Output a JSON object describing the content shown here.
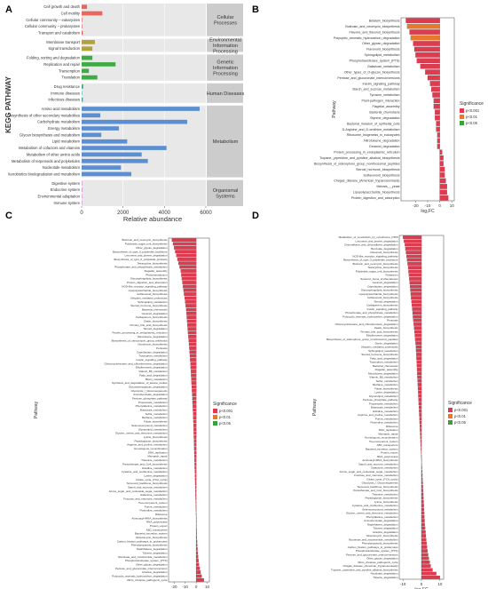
{
  "chart_data": [
    {
      "panel": "A",
      "type": "bar",
      "orientation": "horizontal",
      "xlabel": "Relative abundance",
      "ylabel": "KEGG PATHWAY",
      "xlim": [
        0,
        6000
      ],
      "xticks": [
        "0",
        "2000",
        "4000",
        "6000"
      ],
      "groups": [
        {
          "name": "Cellular Processes",
          "color": "#e9675f",
          "items": [
            {
              "label": "Cell growth and death",
              "value": 260
            },
            {
              "label": "Cell motility",
              "value": 1000
            },
            {
              "label": "Cellular community – eukaryotes",
              "value": 30
            },
            {
              "label": "Cellular community – prokaryotes",
              "value": 30
            },
            {
              "label": "Transport and catabolism",
              "value": 60
            }
          ]
        },
        {
          "name": "Environmental Information Processing",
          "color": "#b3a23a",
          "items": [
            {
              "label": "Membrane transport",
              "value": 640
            },
            {
              "label": "Signal transduction",
              "value": 520
            }
          ]
        },
        {
          "name": "Genetic Information Processing",
          "color": "#3fab45",
          "items": [
            {
              "label": "Folding, sorting and degradation",
              "value": 520
            },
            {
              "label": "Replication and repair",
              "value": 1640
            },
            {
              "label": "Transcription",
              "value": 350
            },
            {
              "label": "Translation",
              "value": 760
            }
          ]
        },
        {
          "name": "Human Diseases",
          "color": "#3fa7a7",
          "items": [
            {
              "label": "Drug resistance",
              "value": 80
            },
            {
              "label": "Immune diseases",
              "value": 20
            },
            {
              "label": "Infectious diseases",
              "value": 60
            }
          ]
        },
        {
          "name": "Metabolism",
          "color": "#5b8fd1",
          "items": [
            {
              "label": "Amino acid metabolism",
              "value": 5700
            },
            {
              "label": "Biosynthesis of other secondary metabolites",
              "value": 900
            },
            {
              "label": "Carbohydrate metabolism",
              "value": 5100
            },
            {
              "label": "Energy metabolism",
              "value": 1800
            },
            {
              "label": "Glycan biosynthesis and metabolism",
              "value": 950
            },
            {
              "label": "Lipid metabolism",
              "value": 2200
            },
            {
              "label": "Metabolism of cofactors and vitamins",
              "value": 4100
            },
            {
              "label": "Metabolism of other amino acids",
              "value": 2900
            },
            {
              "label": "Metabolism of terpenoids and polyketides",
              "value": 3200
            },
            {
              "label": "Nucleotide metabolism",
              "value": 1900
            },
            {
              "label": "Xenobiotics biodegradation and metabolism",
              "value": 2400
            }
          ]
        },
        {
          "name": "Organismal Systems",
          "color": "#d56ad0",
          "items": [
            {
              "label": "Digestive system",
              "value": 20
            },
            {
              "label": "Endocrine system",
              "value": 30
            },
            {
              "label": "Environmental adaptation",
              "value": 15
            },
            {
              "label": "Immune system",
              "value": 10
            }
          ]
        }
      ]
    },
    {
      "panel": "B",
      "type": "bar",
      "orientation": "horizontal",
      "xlabel": "log₂FC",
      "ylabel": "Pathway",
      "xlim": [
        -32,
        12
      ],
      "xticks": [
        "-20",
        "-10",
        "0",
        "10"
      ],
      "legend": {
        "title": "Significance",
        "entries": [
          "p<0.001",
          "p<0.01",
          "p<0.05"
        ],
        "colors": [
          "#e03a4f",
          "#e8792a",
          "#3aa23c"
        ],
        "placement": "right"
      },
      "categories": [
        "Betalain_biosynthesis",
        "Butirosin_and_neomycin_biosynthesis",
        "Flavone_and_flavonol_biosynthesis",
        "Polycyclic_aromatic_hydrocarbon_degradation",
        "Other_glycan_degradation",
        "Flavonoid_biosynthesis",
        "Sphingolipid_metabolism",
        "Phosphotransferase_system_(PTS)",
        "Galactose_metabolism",
        "Other_types_of_O-glycan_biosynthesis",
        "Pentose_and_glucuronate_interconversions",
        "Insulin_signaling_pathway",
        "Starch_and_sucrose_metabolism",
        "Tyrosine_metabolism",
        "Plant-pathogen_interaction",
        "Flagellar_assembly",
        "Bacterial_chemotaxis",
        "Styrene_degradation",
        "Bacterial_invasion_of_epithelial_cells",
        "D-Arginine_and_D-ornithine_metabolism",
        "Ribosome_biogenesis_in_eukaryotes",
        "Nitrotoluene_degradation",
        "Geraniol_degradation",
        "Protein_processing_in_endoplasmic_reticulum",
        "Tropane,_piperidine_and_pyridine_alkaloid_biosynthesis",
        "Biosynthesis_of_siderophore_group_nonribosomal_peptides",
        "Steroid_hormone_biosynthesis",
        "Isoflavonoid_biosynthesis",
        "Chagas_disease_(American_trypanosomiasis)",
        "Meiosis_-_yeast",
        "Lipopolysaccharide_biosynthesis",
        "Protein_digestion_and_absorption"
      ],
      "values": [
        -28,
        -27,
        -25,
        -24,
        -22,
        -21,
        -20,
        -19,
        -16,
        -12,
        -10,
        -8,
        -7,
        -6,
        -5,
        -5,
        -4,
        -4,
        -3,
        -3,
        -2,
        -2,
        -2,
        2,
        3,
        3,
        4,
        4,
        5,
        6,
        6,
        7
      ],
      "significance": [
        "p<0.001",
        "p<0.01",
        "p<0.001",
        "p<0.01",
        "p<0.001",
        "p<0.001",
        "p<0.001",
        "p<0.001",
        "p<0.001",
        "p<0.001",
        "p<0.001",
        "p<0.001",
        "p<0.001",
        "p<0.001",
        "p<0.001",
        "p<0.001",
        "p<0.001",
        "p<0.001",
        "p<0.001",
        "p<0.001",
        "p<0.001",
        "p<0.001",
        "p<0.001",
        "p<0.001",
        "p<0.001",
        "p<0.001",
        "p<0.001",
        "p<0.001",
        "p<0.001",
        "p<0.001",
        "p<0.001",
        "p<0.001"
      ]
    },
    {
      "panel": "C",
      "type": "bar",
      "orientation": "horizontal",
      "xlabel": "log₂FC",
      "ylabel": "Pathway",
      "xlim": [
        -25,
        12
      ],
      "xticks": [
        "-20",
        "-10",
        "0",
        "10"
      ],
      "legend": {
        "title": "Significance",
        "entries": [
          "p<0.001",
          "p<0.01",
          "p<0.05"
        ],
        "colors": [
          "#e03a4f",
          "#e8792a",
          "#3aa23c"
        ],
        "placement": "right"
      },
      "categories": [
        "Butirosin_and_neomycin_biosynthesis",
        "Polyketide_sugar_unit_biosynthesis",
        "Other_glycan_degradation",
        "Biosynthesis_of_type_II_polyketide_backbone",
        "Limonene_and_pinene_degradation",
        "Biosynthesis_of_type_II_polyketide_products",
        "Tetracycline_biosynthesis",
        "Phosphonate_and_phosphinate_metabolism",
        "Flagellar_assembly",
        "Phototransduction",
        "Glycosphingolipid_biosynthesis",
        "Protein_digestion_and_absorption",
        "NOD-like_receptor_signaling_pathway",
        "Lipopolysaccharide_biosynthesis",
        "Isoflavonoid_biosynthesis",
        "Ubiquitin_mediated_proteolysis",
        "Sphingolipid_metabolism",
        "Steroid_hormone_biosynthesis",
        "Bacterial_chemotaxis",
        "Geraniol_degradation",
        "Carbapenem_biosynthesis",
        "Zeatin_biosynthesis",
        "Primary_bile_acid_biosynthesis",
        "Steroid_degradation",
        "Protein_processing_in_endoplasmic_reticulum",
        "Nitrotoluene_degradation",
        "Biosynthesis_of_vancomycin_group_antibiotics",
        "Novobiocin_biosynthesis",
        "Pertussis",
        "Caprolactam_degradation",
        "Tryptophan_metabolism",
        "Insulin_signaling_pathway",
        "Chlorocyclohexane_and_chlorobenzene_degradation",
        "Ethylbenzene_degradation",
        "Vitamin_B6_metabolism",
        "Fatty_acid_degradation",
        "Biotin_metabolism",
        "Synthesis_and_degradation_of_ketone_bodies",
        "Glycosaminoglycan_degradation",
        "Glycolysis_/_Gluconeogenesis",
        "Aminobenzoate_degradation",
        "Pentose_phosphate_pathway",
        "Propanoate_metabolism",
        "Phenylalanine_metabolism",
        "Butanoate_metabolism",
        "Sulfur_metabolism",
        "Methane_metabolism",
        "Folate_biosynthesis",
        "Selenocompound_metabolism",
        "Glycerolipid_metabolism",
        "Glycine,_serine_and_threonine_metabolism",
        "Lysine_biosynthesis",
        "Peptidoglycan_biosynthesis",
        "Arginine_and_proline_metabolism",
        "Homologous_recombination",
        "DNA_replication",
        "Mismatch_repair",
        "Thiamine_metabolism",
        "Pantothenate_and_CoA_biosynthesis",
        "Histidine_metabolism",
        "Cysteine_and_methionine_metabolism",
        "Lysine_degradation",
        "Citrate_cycle_(TCA_cycle)",
        "Terpenoid_backbone_biosynthesis",
        "Starch_and_sucrose_metabolism",
        "Amino_sugar_and_nucleotide_sugar_metabolism",
        "Galactose_metabolism",
        "Fructose_and_mannose_metabolism",
        "Two-component_system",
        "Purine_metabolism",
        "Pyrimidine_metabolism",
        "Ribosome",
        "Aminoacyl-tRNA_biosynthesis",
        "RNA_polymerase",
        "Protein_export",
        "ABC_transporters",
        "Bacterial_secretion_system",
        "Streptomycin_biosynthesis",
        "Carbon_fixation_pathways_in_prokaryotes",
        "Phenylpropanoid_biosynthesis",
        "Naphthalene_degradation",
        "Toluene_degradation",
        "Nicotinate_and_nicotinamide_metabolism",
        "Phosphotransferase_system_(PTS)",
        "Other_glycan_degradation",
        "Pentose_and_glucuronate_interconversions",
        "Atrazine_degradation",
        "Polycyclic_aromatic_hydrocarbon_degradation",
        "Vibrio_cholerae_pathogenic_cycle"
      ],
      "values_description": "values decrease roughly linearly from about -22 at the top to about -1, then turn positive near the bottom (final bar about +7)",
      "values": [
        -22,
        -21,
        -20,
        -19,
        -18,
        -17,
        -16,
        -15,
        -14,
        -13.5,
        -13,
        -12.5,
        -12,
        -11.5,
        -11,
        -10.5,
        -10,
        -9.5,
        -9,
        -8.8,
        -8.5,
        -8.2,
        -8,
        -7.7,
        -7.4,
        -7.1,
        -6.8,
        -6.5,
        -6.2,
        -6,
        -5.7,
        -5.5,
        -5.2,
        -5,
        -4.8,
        -4.6,
        -4.4,
        -4.2,
        -4,
        -3.8,
        -3.6,
        -3.4,
        -3.3,
        -3.1,
        -3,
        -2.8,
        -2.7,
        -2.5,
        -2.4,
        -2.3,
        -2.2,
        -2.1,
        -2,
        -1.9,
        -1.8,
        -1.7,
        -1.6,
        -1.5,
        -1.4,
        -1.3,
        -1.2,
        -1.1,
        -1,
        -0.9,
        -0.8,
        -0.7,
        -0.6,
        -0.5,
        -0.4,
        -0.3,
        -0.2,
        -0.1,
        0.1,
        0.2,
        0.3,
        0.4,
        0.5,
        0.6,
        0.8,
        1,
        1.2,
        1.5,
        1.8,
        2.2,
        2.6,
        3.2,
        4,
        5,
        7
      ]
    },
    {
      "panel": "D",
      "type": "bar",
      "orientation": "horizontal",
      "xlabel": "log₂FC",
      "ylabel": "Pathway",
      "xlim": [
        -12,
        12
      ],
      "xticks": [
        "-10",
        "0",
        "10"
      ],
      "legend": {
        "title": "Significance",
        "entries": [
          "p<0.001",
          "p<0.01",
          "p<0.05"
        ],
        "colors": [
          "#e03a4f",
          "#e8792a",
          "#3aa23c"
        ],
        "placement": "right"
      },
      "categories": [
        "Metabolism_of_xenobiotics_by_cytochrome_P450",
        "Limonene_and_pinene_degradation",
        "Chloroalkane_and_chloroalkene_degradation",
        "Benzoate_degradation",
        "Flavonoid_biosynthesis",
        "NOD-like_receptor_signaling_pathway",
        "Biosynthesis_of_type_II_polyketide_backbone",
        "Butirosin_and_neomycin_biosynthesis",
        "Tetracycline_biosynthesis",
        "Polyketide_sugar_unit_biosynthesis",
        "Potassium",
        "Systemic_lupus_erythematosus",
        "Geraniol_degradation",
        "Caprolactam_degradation",
        "Glycosphingolipid_biosynthesis",
        "Lipopolysaccharide_biosynthesis",
        "Isoflavonoid_biosynthesis",
        "Steroid_degradation",
        "Carbapenem_biosynthesis",
        "Insulin_signaling_pathway",
        "Phosphonate_and_phosphinate_metabolism",
        "Polycyclic_aromatic_hydrocarbon_degradation",
        "Pertussis",
        "Chlorocyclohexane_and_chlorobenzene_degradation",
        "Zeatin_biosynthesis",
        "Primary_bile_acid_biosynthesis",
        "Ethylbenzene_degradation",
        "Biosynthesis_of_siderophore_group_nonribosomal_peptides",
        "Dioxin_degradation",
        "Ubiquitin_mediated_proteolysis",
        "Sphingolipid_metabolism",
        "Steroid_hormone_biosynthesis",
        "Fatty_acid_degradation",
        "Tryptophan_metabolism",
        "Bacterial_chemotaxis",
        "Flagellar_assembly",
        "Nitrotoluene_degradation",
        "Vitamin_B6_metabolism",
        "Sulfur_metabolism",
        "Methane_metabolism",
        "Folate_biosynthesis",
        "Lysine_degradation",
        "Glycerolipid_metabolism",
        "Pentose_phosphate_pathway",
        "Propanoate_metabolism",
        "Butanoate_metabolism",
        "Histidine_metabolism",
        "Arginine_and_proline_metabolism",
        "Purine_metabolism",
        "Pyrimidine_metabolism",
        "Ribosome",
        "DNA_replication",
        "Mismatch_repair",
        "Homologous_recombination",
        "Two-component_system",
        "ABC_transporters",
        "Bacterial_secretion_system",
        "Protein_export",
        "RNA_polymerase",
        "Aminoacyl-tRNA_biosynthesis",
        "Starch_and_sucrose_metabolism",
        "Galactose_metabolism",
        "Amino_sugar_and_nucleotide_sugar_metabolism",
        "Fructose_and_mannose_metabolism",
        "Citrate_cycle_(TCA_cycle)",
        "Glycolysis_/_Gluconeogenesis",
        "Terpenoid_backbone_biosynthesis",
        "Pantothenate_and_CoA_biosynthesis",
        "Thiamine_metabolism",
        "Peptidoglycan_biosynthesis",
        "Lysine_biosynthesis",
        "Cysteine_and_methionine_metabolism",
        "Selenocompound_metabolism",
        "Glycine,_serine_and_threonine_metabolism",
        "Phenylalanine_metabolism",
        "Aminobenzoate_degradation",
        "Naphthalene_degradation",
        "Toluene_degradation",
        "Atrazine_degradation",
        "Streptomycin_biosynthesis",
        "Nicotinate_and_nicotinamide_metabolism",
        "Phenylpropanoid_biosynthesis",
        "Carbon_fixation_pathways_in_prokaryotes",
        "Phosphotransferase_system_(PTS)",
        "Pentose_and_glucuronate_interconversions",
        "Other_glycan_degradation",
        "Vibrio_cholerae_pathogenic_cycle",
        "Chagas_disease_(American_trypanosomiasis)",
        "Tropane,_piperidine_and_pyridine_alkaloid_biosynthesis",
        "Nicotinate_degradation",
        "Toluene_degradation"
      ],
      "values": [
        -10,
        -9.5,
        -9,
        -8.7,
        -8.4,
        -8.1,
        -7.8,
        -7.5,
        -7.2,
        -7,
        -6.8,
        -6.6,
        -6.4,
        -6.2,
        -6,
        -5.8,
        -5.6,
        -5.4,
        -5.2,
        -5,
        -4.8,
        -4.6,
        -4.4,
        -4.2,
        -4,
        -3.8,
        -3.6,
        -3.4,
        -3.2,
        -3,
        -2.9,
        -2.8,
        -2.7,
        -2.6,
        -2.5,
        -2.4,
        -2.3,
        -2.2,
        -2.1,
        -2,
        -1.9,
        -1.8,
        -1.7,
        -1.6,
        -1.5,
        -1.4,
        -1.3,
        -1.2,
        -1.1,
        -1,
        -0.9,
        -0.8,
        -0.7,
        -0.6,
        -0.5,
        -0.4,
        -0.3,
        -0.2,
        -0.1,
        0.1,
        0.2,
        0.3,
        0.4,
        0.5,
        0.6,
        0.7,
        0.8,
        0.9,
        1,
        1.1,
        1.2,
        1.3,
        1.4,
        1.5,
        1.6,
        1.7,
        1.8,
        2,
        2.2,
        2.4,
        2.6,
        2.8,
        3,
        3.3,
        3.6,
        4,
        4.5,
        5,
        6,
        8,
        10
      ]
    }
  ],
  "panel_labels": [
    "A",
    "B",
    "C",
    "D"
  ],
  "legend_title": "Significance",
  "legend_entries": [
    "p<0.001",
    "p<0.01",
    "p<0.05"
  ],
  "colors": {
    "sig001": "#e03a4f",
    "sig01": "#e8792a",
    "sig05": "#3aa23c",
    "panelbg": "#e8e8e8",
    "stripbg": "#cccccc"
  }
}
